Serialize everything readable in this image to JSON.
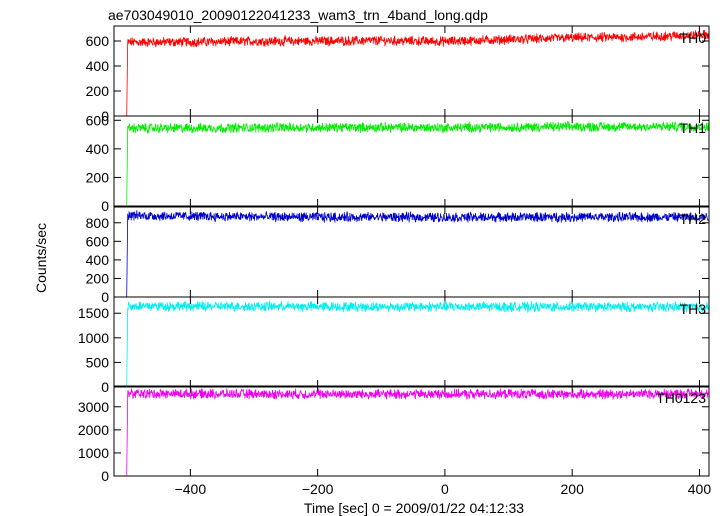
{
  "title": "ae703049010_20090122041233_wam3_trn_4band_long.qdp",
  "ylabel": "Counts/sec",
  "xlabel": "Time [sec] 0 = 2009/01/22 04:12:33",
  "chart_data": {
    "type": "line",
    "title": "ae703049010_20090122041233_wam3_trn_4band_long.qdp",
    "xlabel": "Time [sec] 0 = 2009/01/22 04:12:33",
    "ylabel": "Counts/sec",
    "xlim": [
      -520,
      415
    ],
    "x_ticks": [
      -400,
      -200,
      0,
      200,
      400
    ],
    "x_tick_labels": [
      "−400",
      "−200",
      "0",
      "200",
      "400"
    ],
    "x_start": -500,
    "x_end": 415,
    "grid": false,
    "legend": "none",
    "panels": [
      {
        "name": "TH0",
        "color": "#ff0000",
        "ylim": [
          0,
          720
        ],
        "y_ticks": [
          0,
          200,
          400,
          600
        ],
        "x": [
          -500,
          -400,
          -300,
          -200,
          -100,
          0,
          100,
          200,
          300,
          400,
          415
        ],
        "y": [
          590,
          592,
          598,
          600,
          603,
          597,
          612,
          625,
          632,
          648,
          650
        ]
      },
      {
        "name": "TH1",
        "color": "#00ee00",
        "ylim": [
          0,
          630
        ],
        "y_ticks": [
          0,
          200,
          400,
          600
        ],
        "x": [
          -500,
          -400,
          -300,
          -200,
          -100,
          0,
          100,
          200,
          300,
          400,
          415
        ],
        "y": [
          545,
          545,
          548,
          550,
          550,
          548,
          552,
          555,
          555,
          556,
          556
        ]
      },
      {
        "name": "TH2",
        "color": "#0000cc",
        "ylim": [
          0,
          970
        ],
        "y_ticks": [
          0,
          200,
          400,
          600,
          800
        ],
        "x": [
          -500,
          -400,
          -300,
          -200,
          -100,
          0,
          100,
          200,
          300,
          400,
          415
        ],
        "y": [
          880,
          870,
          865,
          860,
          862,
          858,
          860,
          862,
          860,
          862,
          862
        ]
      },
      {
        "name": "TH3",
        "color": "#00eeee",
        "ylim": [
          0,
          1830
        ],
        "y_ticks": [
          0,
          500,
          1000,
          1500
        ],
        "x": [
          -500,
          -400,
          -300,
          -200,
          -100,
          0,
          100,
          200,
          300,
          400,
          415
        ],
        "y": [
          1650,
          1640,
          1640,
          1635,
          1630,
          1635,
          1630,
          1630,
          1625,
          1630,
          1630
        ]
      },
      {
        "name": "TH0123",
        "color": "#ee00ee",
        "ylim": [
          0,
          3900
        ],
        "y_ticks": [
          0,
          1000,
          2000,
          3000
        ],
        "x": [
          -500,
          -400,
          -300,
          -200,
          -100,
          0,
          100,
          200,
          300,
          400,
          415
        ],
        "y": [
          3570,
          3560,
          3550,
          3545,
          3545,
          3548,
          3550,
          3540,
          3560,
          3570,
          3570
        ]
      }
    ]
  }
}
